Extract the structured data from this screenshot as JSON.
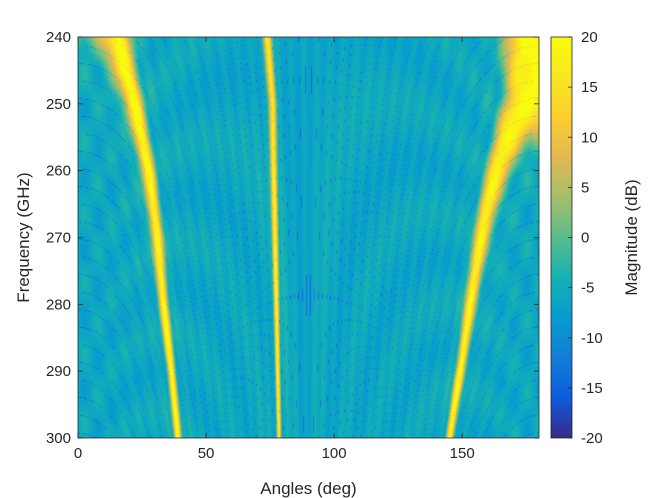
{
  "chart_data": {
    "type": "heatmap",
    "title": "",
    "xlabel": "Angles (deg)",
    "ylabel": "Frequency (GHz)",
    "colorbar_label": "Magnitude (dB)",
    "colormap": "parula",
    "xlim": [
      0,
      180
    ],
    "ylim": [
      240,
      300
    ],
    "y_direction": "reversed",
    "clim": [
      -20,
      20
    ],
    "x_ticks": [
      0,
      50,
      100,
      150
    ],
    "x_tick_labels": [
      "0",
      "50",
      "100",
      "150"
    ],
    "y_ticks": [
      240,
      250,
      260,
      270,
      280,
      290,
      300
    ],
    "y_tick_labels": [
      "240",
      "250",
      "260",
      "270",
      "280",
      "290",
      "300"
    ],
    "colorbar_ticks": [
      20,
      15,
      10,
      5,
      0,
      -5,
      -10,
      -15,
      -20
    ],
    "colorbar_tick_labels": [
      "20",
      "15",
      "10",
      "5",
      "0",
      "-5",
      "-10",
      "-15",
      "-20"
    ],
    "grid": false,
    "colorbar_position": "right",
    "background_level_db": -8,
    "beams": [
      {
        "peak_db": 20,
        "points": [
          [
            15,
            240
          ],
          [
            22,
            250
          ],
          [
            27.5,
            260
          ],
          [
            31,
            270
          ],
          [
            33.5,
            280
          ],
          [
            36.5,
            290
          ],
          [
            39,
            300
          ]
        ]
      },
      {
        "peak_db": 18,
        "points": [
          [
            74,
            240
          ],
          [
            76,
            250
          ],
          [
            76.5,
            260
          ],
          [
            77,
            270
          ],
          [
            77.5,
            280
          ],
          [
            78,
            290
          ],
          [
            78.5,
            300
          ]
        ]
      },
      {
        "peak_db": 20,
        "points": [
          [
            180,
            248
          ],
          [
            172,
            251
          ],
          [
            165,
            258
          ],
          [
            160,
            265
          ],
          [
            156,
            273
          ],
          [
            153,
            280
          ],
          [
            150,
            288
          ],
          [
            147,
            295
          ],
          [
            145,
            300
          ]
        ]
      }
    ]
  }
}
